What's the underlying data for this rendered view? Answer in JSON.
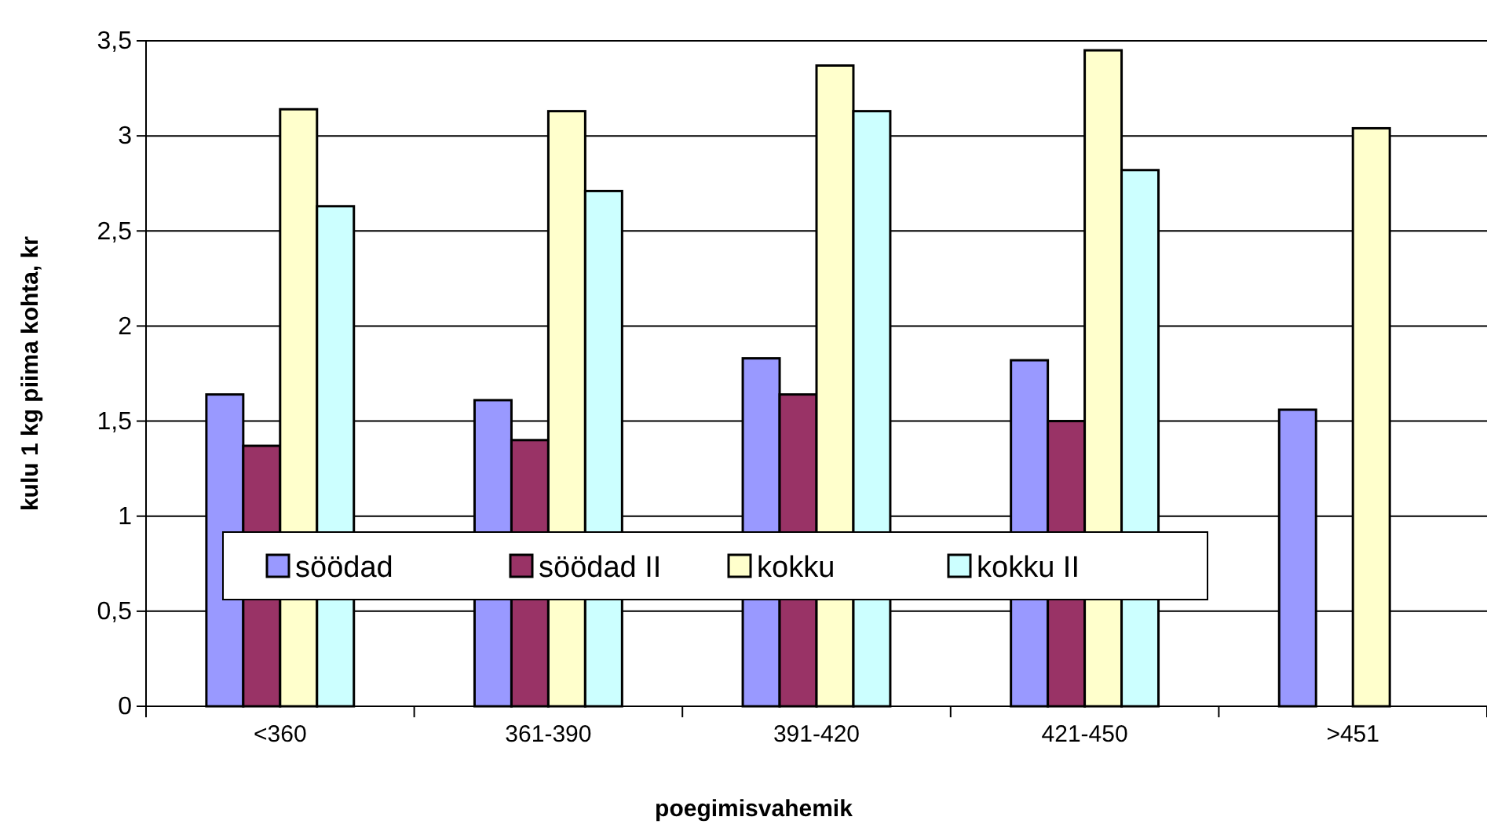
{
  "chart_data": {
    "type": "bar",
    "xlabel": "poegimisvahemik",
    "ylabel": "kulu 1 kg piima kohta, kr",
    "categories": [
      "<360",
      "361-390",
      "391-420",
      "421-450",
      ">451"
    ],
    "series": [
      {
        "name": "söödad",
        "color": "#9999ff",
        "values": [
          1.64,
          1.61,
          1.83,
          1.82,
          1.56
        ]
      },
      {
        "name": "söödad II",
        "color": "#993366",
        "values": [
          1.37,
          1.4,
          1.64,
          1.5,
          null
        ]
      },
      {
        "name": "kokku",
        "color": "#ffffcc",
        "values": [
          3.14,
          3.13,
          3.37,
          3.45,
          3.04
        ]
      },
      {
        "name": "kokku II",
        "color": "#ccffff",
        "values": [
          2.63,
          2.71,
          3.13,
          2.82,
          null
        ]
      }
    ],
    "ylim": [
      0,
      3.5
    ],
    "yticks": [
      0,
      {
        "value": 0.5,
        "label": "0,5"
      },
      1,
      {
        "value": 1.5,
        "label": "1,5"
      },
      2,
      {
        "value": 2.5,
        "label": "2,5"
      },
      3,
      {
        "value": 3.5,
        "label": "3,5"
      }
    ],
    "grid": "y",
    "legend": "bottom"
  }
}
